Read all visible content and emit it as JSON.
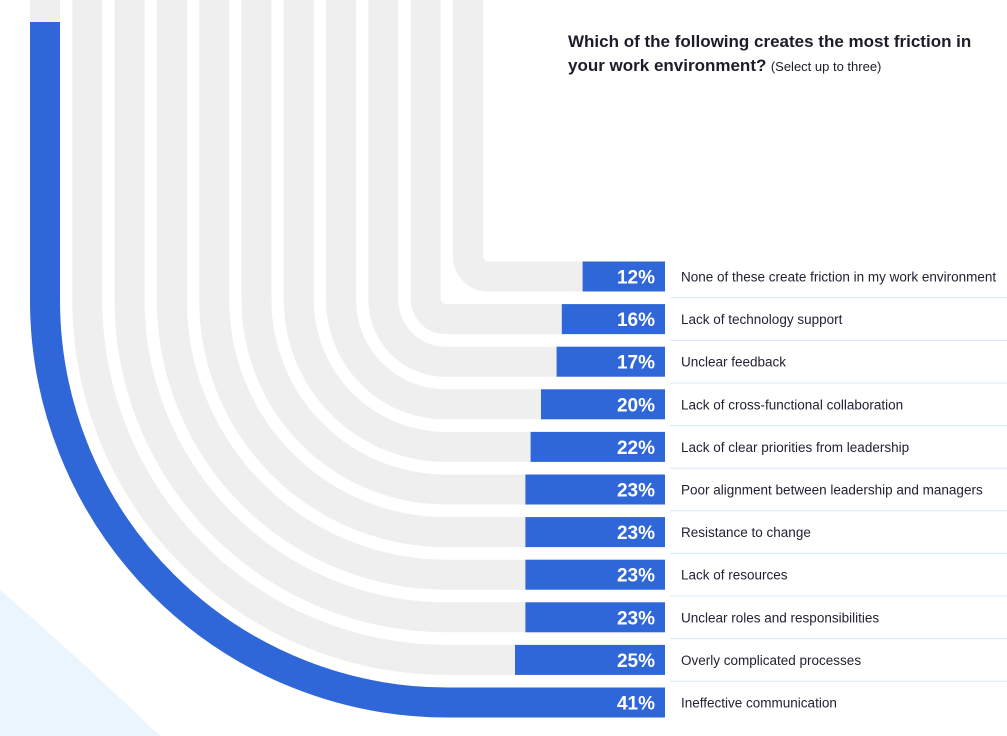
{
  "title": "Which of the following creates the most friction in your work environment?",
  "subtitle": "(Select up to three)",
  "colors": {
    "bar": "#2f67d8",
    "track": "#efefef",
    "label": "#222233",
    "divider": "#d6e8f3",
    "value_text": "#ffffff",
    "background_blob": "#eaf5fd"
  },
  "chart_data": {
    "type": "bar",
    "orientation": "horizontal",
    "title": "Which of the following creates the most friction in your work environment?",
    "subtitle": "(Select up to three)",
    "unit": "%",
    "categories": [
      "None of these create friction in my work environment",
      "Lack of technology support",
      "Unclear feedback",
      "Lack of cross-functional collaboration",
      "Lack of clear priorities from leadership",
      "Poor alignment between leadership and managers",
      "Resistance to change",
      "Lack of resources",
      "Unclear roles and responsibilities",
      "Overly complicated processes",
      "Ineffective communication"
    ],
    "values": [
      12,
      16,
      17,
      20,
      22,
      23,
      23,
      23,
      23,
      25,
      41
    ],
    "value_labels": [
      "12%",
      "16%",
      "17%",
      "20%",
      "22%",
      "23%",
      "23%",
      "23%",
      "23%",
      "25%",
      "41%"
    ]
  }
}
